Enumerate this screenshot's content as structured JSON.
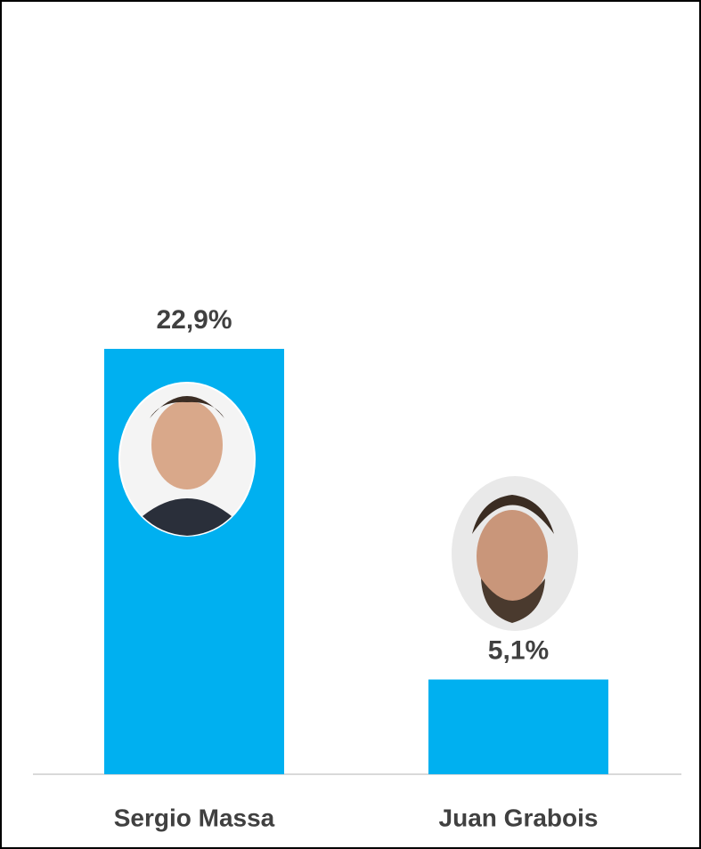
{
  "chart_data": {
    "type": "bar",
    "categories": [
      "Sergio Massa",
      "Juan Grabois"
    ],
    "values": [
      22.9,
      5.1
    ],
    "value_labels": [
      "22,9%",
      "5,1%"
    ],
    "color": "#00b0f0"
  }
}
